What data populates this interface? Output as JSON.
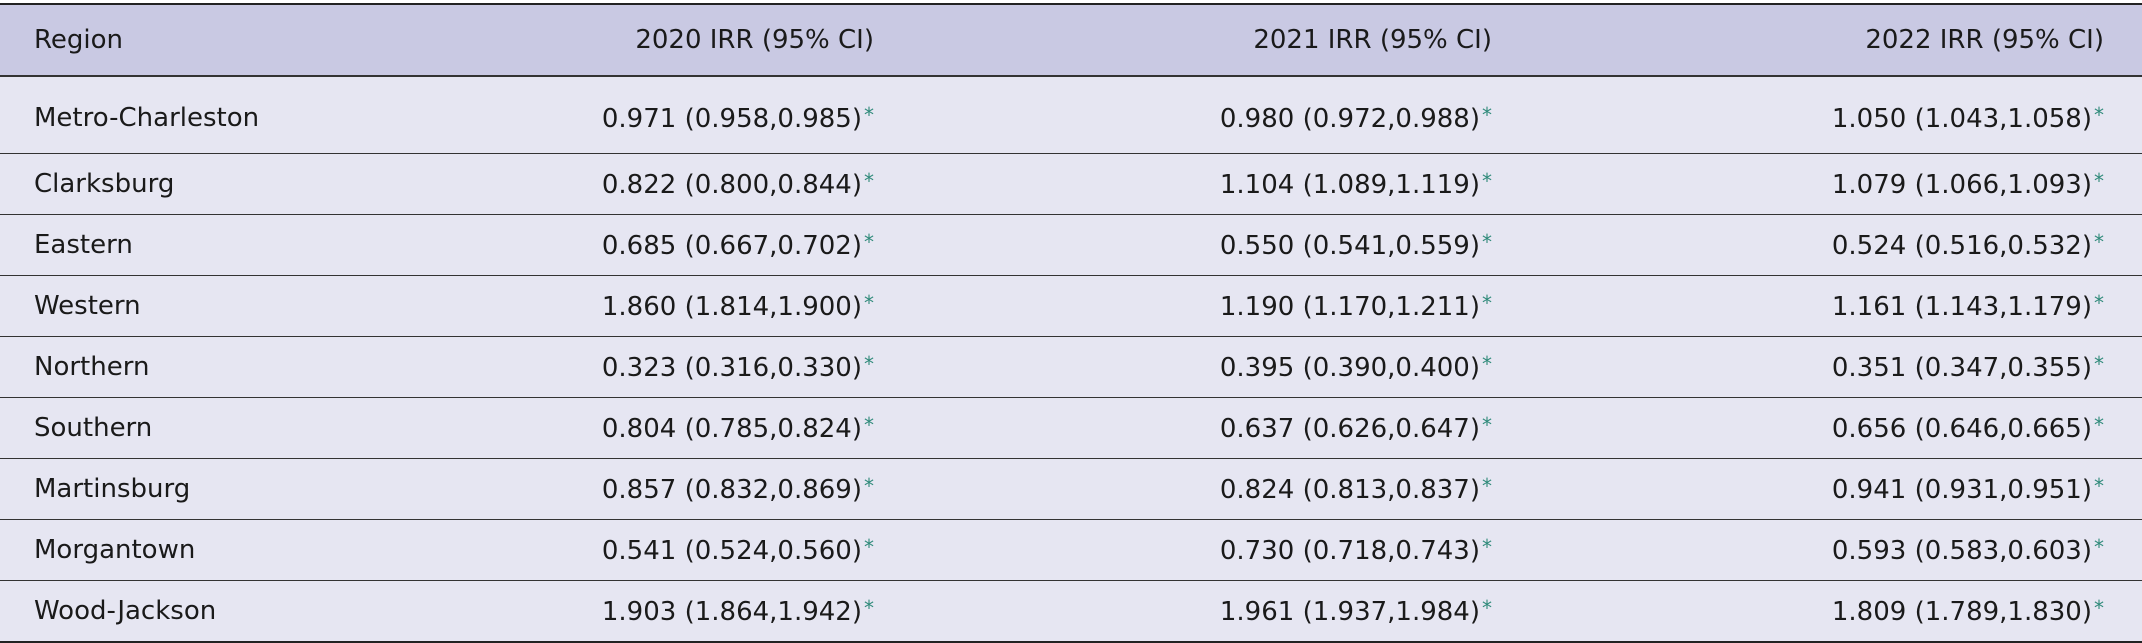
{
  "table": {
    "header": [
      "Region",
      "2020 IRR (95% CI)",
      "2021 IRR (95% CI)",
      "2022 IRR (95% CI)"
    ],
    "rows": [
      {
        "region": "Metro-Charleston",
        "cells": [
          {
            "value": "0.971 (0.958,0.985)",
            "note": "*"
          },
          {
            "value": "0.980 (0.972,0.988)",
            "note": "*"
          },
          {
            "value": "1.050 (1.043,1.058)",
            "note": "*"
          }
        ]
      },
      {
        "region": "Clarksburg",
        "cells": [
          {
            "value": "0.822 (0.800,0.844)",
            "note": "*"
          },
          {
            "value": "1.104 (1.089,1.119)",
            "note": "*"
          },
          {
            "value": "1.079 (1.066,1.093)",
            "note": "*"
          }
        ]
      },
      {
        "region": "Eastern",
        "cells": [
          {
            "value": "0.685 (0.667,0.702)",
            "note": "*"
          },
          {
            "value": "0.550 (0.541,0.559)",
            "note": "*"
          },
          {
            "value": "0.524 (0.516,0.532)",
            "note": "*"
          }
        ]
      },
      {
        "region": "Western",
        "cells": [
          {
            "value": "1.860 (1.814,1.900)",
            "note": "*"
          },
          {
            "value": "1.190 (1.170,1.211)",
            "note": "*"
          },
          {
            "value": "1.161 (1.143,1.179)",
            "note": "*"
          }
        ]
      },
      {
        "region": "Northern",
        "cells": [
          {
            "value": "0.323 (0.316,0.330)",
            "note": "*"
          },
          {
            "value": "0.395 (0.390,0.400)",
            "note": "*"
          },
          {
            "value": "0.351 (0.347,0.355)",
            "note": "*"
          }
        ]
      },
      {
        "region": "Southern",
        "cells": [
          {
            "value": "0.804 (0.785,0.824)",
            "note": "*"
          },
          {
            "value": "0.637 (0.626,0.647)",
            "note": "*"
          },
          {
            "value": "0.656 (0.646,0.665)",
            "note": "*"
          }
        ]
      },
      {
        "region": "Martinsburg",
        "cells": [
          {
            "value": "0.857 (0.832,0.869)",
            "note": "*"
          },
          {
            "value": "0.824 (0.813,0.837)",
            "note": "*"
          },
          {
            "value": "0.941 (0.931,0.951)",
            "note": "*"
          }
        ]
      },
      {
        "region": "Morgantown",
        "cells": [
          {
            "value": "0.541 (0.524,0.560)",
            "note": "*"
          },
          {
            "value": "0.730 (0.718,0.743)",
            "note": "*"
          },
          {
            "value": "0.593 (0.583,0.603)",
            "note": "*"
          }
        ]
      },
      {
        "region": "Wood-Jackson",
        "cells": [
          {
            "value": "1.903 (1.864,1.942)",
            "note": "*"
          },
          {
            "value": "1.961 (1.937,1.984)",
            "note": "*"
          },
          {
            "value": "1.809 (1.789,1.830)",
            "note": "*"
          }
        ]
      }
    ]
  }
}
